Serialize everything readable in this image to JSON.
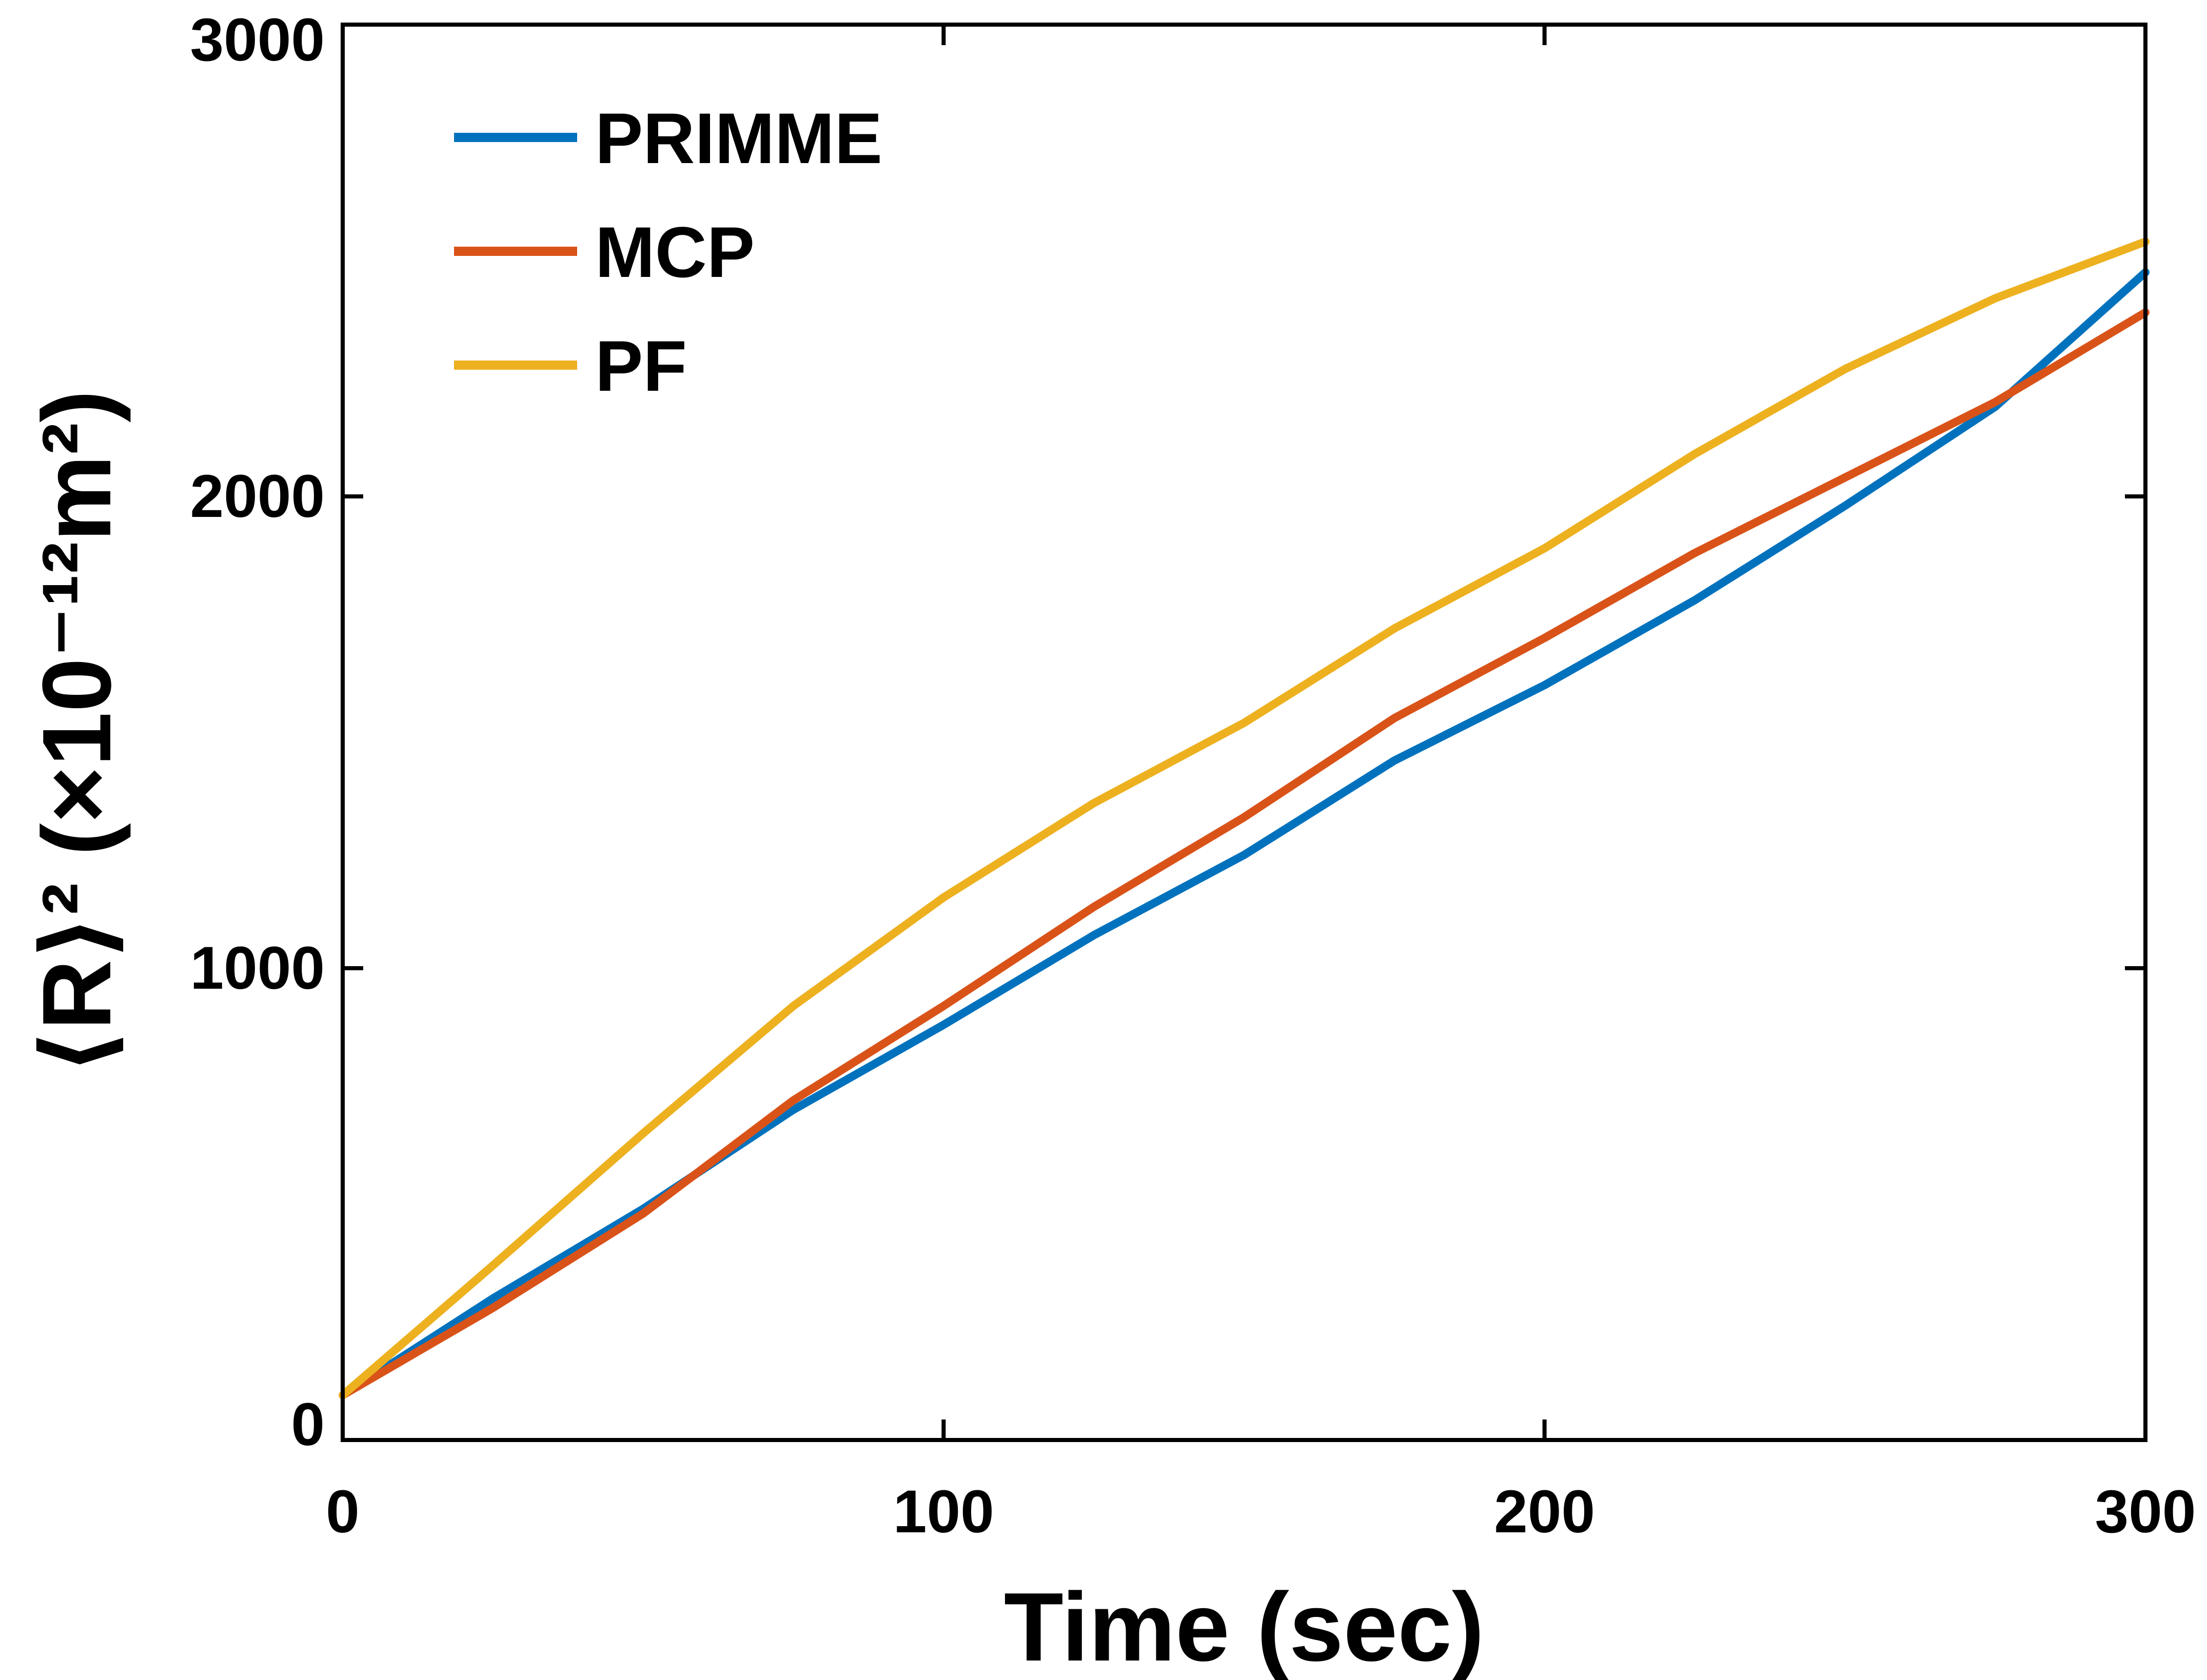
{
  "chart_data": {
    "type": "line",
    "title": "",
    "xlabel": "Time (sec)",
    "ylabel": "⟨R⟩² (×10⁻¹²m²)",
    "xlim": [
      0,
      300
    ],
    "ylim": [
      0,
      3000
    ],
    "xticks": [
      0,
      100,
      200,
      300
    ],
    "yticks": [
      0,
      1000,
      2000,
      3000
    ],
    "xtick_labels": [
      "0",
      "100",
      "200",
      "300"
    ],
    "ytick_labels": [
      "0",
      "1000",
      "2000",
      "3000"
    ],
    "grid": false,
    "legend_position": "top-left",
    "x": [
      0,
      25,
      50,
      75,
      100,
      125,
      150,
      175,
      200,
      225,
      250,
      275,
      300
    ],
    "series": [
      {
        "name": "PRIMME",
        "color": "#0072BD",
        "values": [
          95,
          300,
          490,
          700,
          880,
          1070,
          1240,
          1440,
          1600,
          1780,
          1980,
          2190,
          2475
        ]
      },
      {
        "name": "MCP",
        "color": "#D95319",
        "values": [
          95,
          280,
          480,
          720,
          920,
          1130,
          1320,
          1530,
          1700,
          1880,
          2040,
          2200,
          2390
        ]
      },
      {
        "name": "PF",
        "color": "#EDB120",
        "values": [
          95,
          370,
          650,
          920,
          1150,
          1350,
          1520,
          1720,
          1890,
          2090,
          2270,
          2420,
          2540
        ]
      }
    ]
  }
}
